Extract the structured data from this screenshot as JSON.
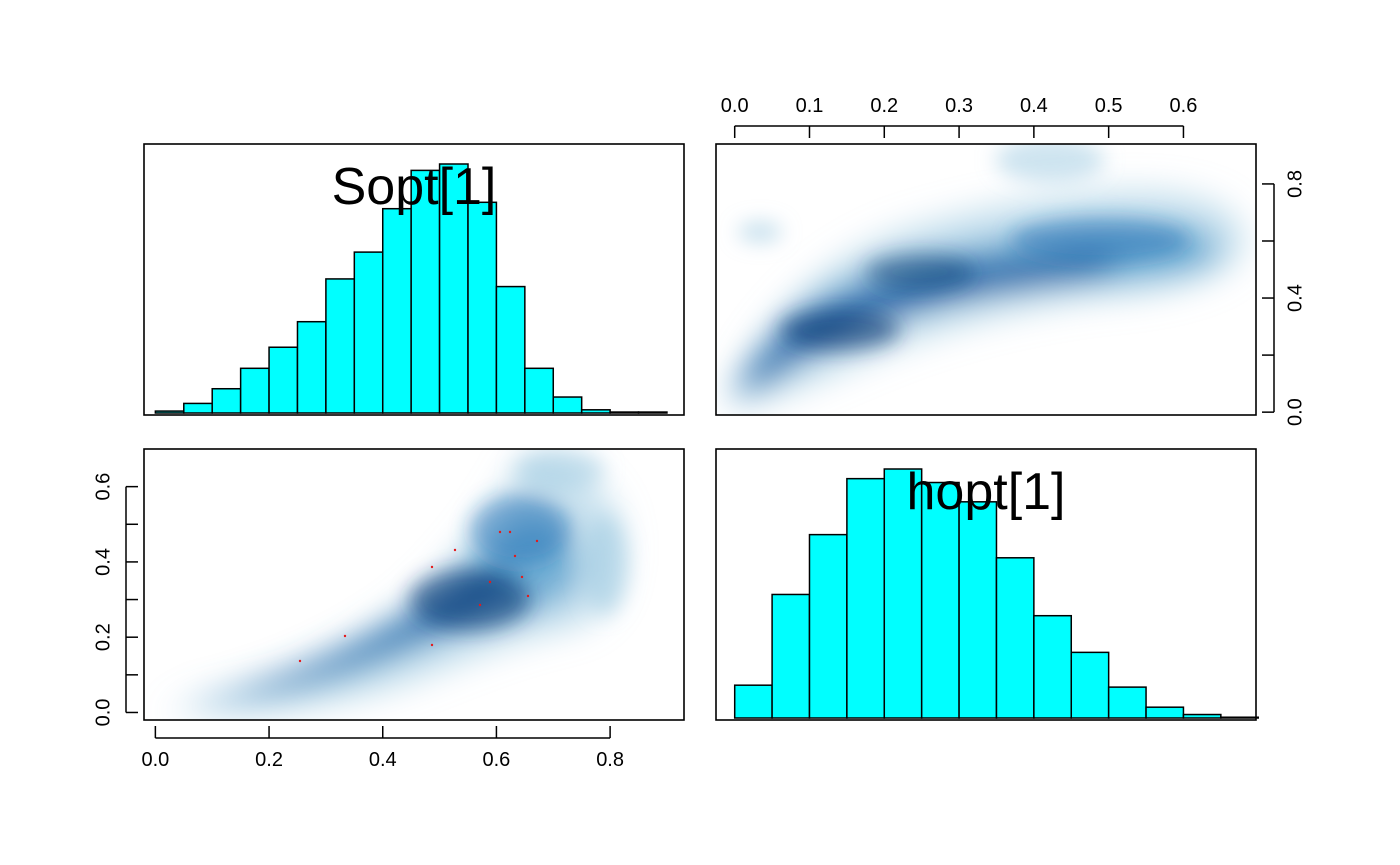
{
  "chart_data": {
    "type": "pairs",
    "variables": [
      "Sopt[1]",
      "hopt[1]"
    ],
    "colors": {
      "bar_fill": "#00FFFF",
      "bar_stroke": "#000000",
      "density_dark": "#08306B",
      "density_mid": "#2171B5",
      "points": "#E41A1C"
    },
    "panels": [
      {
        "id": "hist-sopt",
        "type": "bar",
        "title": "Sopt[1]",
        "bin_edges": [
          0.0,
          0.05,
          0.1,
          0.15,
          0.2,
          0.25,
          0.3,
          0.35,
          0.4,
          0.45,
          0.5,
          0.55,
          0.6,
          0.65,
          0.7,
          0.75,
          0.8,
          0.85,
          0.9
        ],
        "values": [
          0.3,
          1.5,
          3.8,
          7.0,
          10.3,
          14.3,
          21.0,
          25.2,
          32.0,
          38.0,
          39.0,
          33.0,
          19.8,
          7.0,
          2.5,
          0.5,
          0.15,
          0.15
        ],
        "xlim": [
          -0.02,
          0.93
        ]
      },
      {
        "id": "scatter-hopt-sopt",
        "type": "scatter",
        "x_var": "hopt[1]",
        "y_var": "Sopt[1]",
        "x_ticks": [
          0.0,
          0.1,
          0.2,
          0.3,
          0.4,
          0.5,
          0.6
        ],
        "y_ticks": [
          0.0,
          0.2,
          0.4,
          0.6,
          0.8
        ],
        "y_tick_labels": [
          "0.0",
          "",
          "0.4",
          "",
          "0.8"
        ],
        "xlim": [
          -0.025,
          0.697
        ],
        "ylim": [
          -0.01,
          0.94
        ],
        "x_axis_side": "top",
        "y_axis_side": "right"
      },
      {
        "id": "scatter-sopt-hopt",
        "type": "scatter",
        "x_var": "Sopt[1]",
        "y_var": "hopt[1]",
        "x_ticks": [
          0.0,
          0.2,
          0.4,
          0.6,
          0.8
        ],
        "x_tick_labels": [
          "0.0",
          "0.2",
          "0.4",
          "0.6",
          "0.8"
        ],
        "y_ticks": [
          0.0,
          0.1,
          0.2,
          0.3,
          0.4,
          0.5,
          0.6
        ],
        "y_tick_labels": [
          "0.0",
          "",
          "0.2",
          "",
          "0.4",
          "",
          "0.6"
        ],
        "xlim": [
          -0.02,
          0.93
        ],
        "ylim": [
          -0.02,
          0.7
        ],
        "x_axis_side": "bottom",
        "y_axis_side": "left"
      },
      {
        "id": "hist-hopt",
        "type": "bar",
        "title": "hopt[1]",
        "bin_edges": [
          0.0,
          0.05,
          0.1,
          0.15,
          0.2,
          0.25,
          0.3,
          0.35,
          0.4,
          0.45,
          0.5,
          0.55,
          0.6,
          0.65,
          0.7
        ],
        "values": [
          8.5,
          32.0,
          47.5,
          62.0,
          64.5,
          61.0,
          56.0,
          41.5,
          26.5,
          17.0,
          8.0,
          2.8,
          0.9,
          0.2
        ],
        "xlim": [
          -0.025,
          0.697
        ]
      }
    ]
  }
}
